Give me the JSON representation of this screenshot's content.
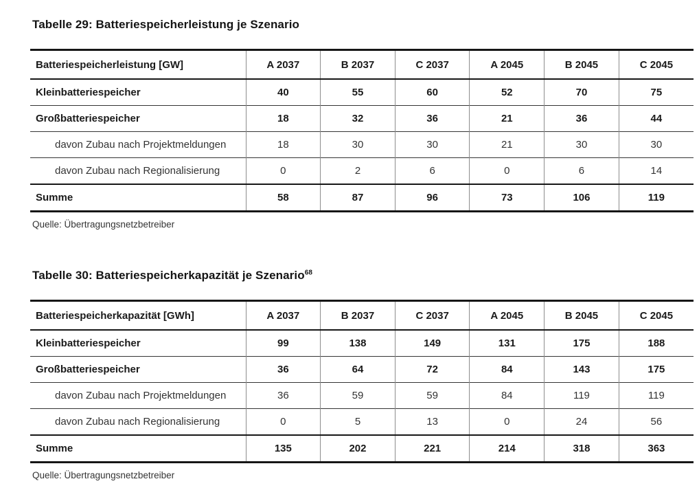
{
  "page": {
    "background": "#ffffff",
    "text_color": "#1f1f1f",
    "rule_color": "#161616",
    "grid_color": "#8c8c8c"
  },
  "tables": [
    {
      "title": "Tabelle 29: Batteriespeicherleistung je Szenario",
      "title_superscript": "",
      "header": [
        "Batteriespeicherleistung [GW]",
        "A 2037",
        "B 2037",
        "C 2037",
        "A 2045",
        "B 2045",
        "C 2045"
      ],
      "rows": [
        {
          "label": "Kleinbatteriespeicher",
          "style": "bold",
          "values": [
            "40",
            "55",
            "60",
            "52",
            "70",
            "75"
          ]
        },
        {
          "label": "Großbatteriespeicher",
          "style": "bold",
          "values": [
            "18",
            "32",
            "36",
            "21",
            "36",
            "44"
          ]
        },
        {
          "label": "davon Zubau nach Projektmeldungen",
          "style": "indent",
          "values": [
            "18",
            "30",
            "30",
            "21",
            "30",
            "30"
          ]
        },
        {
          "label": "davon Zubau nach Regionalisierung",
          "style": "indent",
          "values": [
            "0",
            "2",
            "6",
            "0",
            "6",
            "14"
          ]
        },
        {
          "label": "Summe",
          "style": "total",
          "values": [
            "58",
            "87",
            "96",
            "73",
            "106",
            "119"
          ]
        }
      ],
      "source": "Quelle: Übertragungsnetzbetreiber"
    },
    {
      "title": "Tabelle 30: Batteriespeicherkapazität je Szenario",
      "title_superscript": "68",
      "header": [
        "Batteriespeicherkapazität [GWh]",
        "A 2037",
        "B 2037",
        "C 2037",
        "A 2045",
        "B 2045",
        "C 2045"
      ],
      "rows": [
        {
          "label": "Kleinbatteriespeicher",
          "style": "bold",
          "values": [
            "99",
            "138",
            "149",
            "131",
            "175",
            "188"
          ]
        },
        {
          "label": "Großbatteriespeicher",
          "style": "bold",
          "values": [
            "36",
            "64",
            "72",
            "84",
            "143",
            "175"
          ]
        },
        {
          "label": "davon Zubau nach Projektmeldungen",
          "style": "indent",
          "values": [
            "36",
            "59",
            "59",
            "84",
            "119",
            "119"
          ]
        },
        {
          "label": "davon Zubau nach Regionalisierung",
          "style": "indent",
          "values": [
            "0",
            "5",
            "13",
            "0",
            "24",
            "56"
          ]
        },
        {
          "label": "Summe",
          "style": "total",
          "values": [
            "135",
            "202",
            "221",
            "214",
            "318",
            "363"
          ]
        }
      ],
      "source": "Quelle: Übertragungsnetzbetreiber"
    }
  ]
}
